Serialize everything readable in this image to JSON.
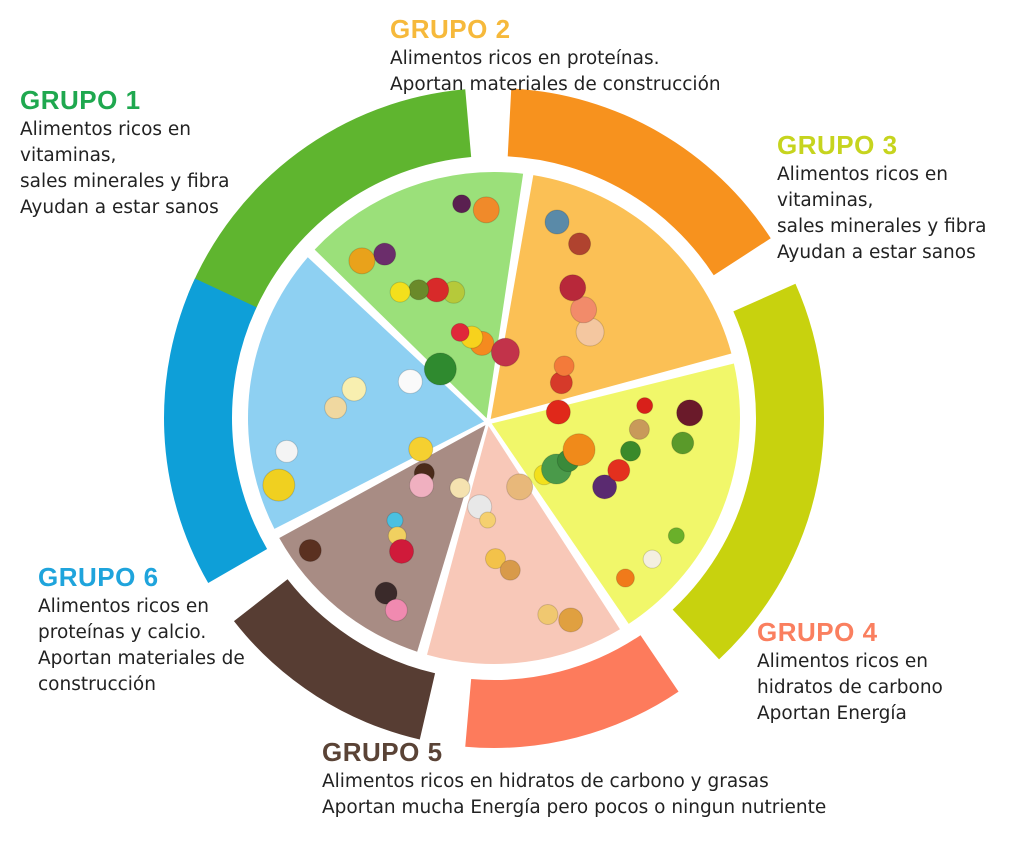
{
  "groups": [
    {
      "title": "GRUPO 1",
      "lines": [
        "Alimentos ricos en",
        "vitaminas,",
        "sales minerales y fibra",
        "Ayudan a estar sanos"
      ],
      "title_color": "#1fa84f",
      "band_color": "#5fb52f",
      "slice_color": "#9be07a",
      "food_icons": [
        "watermelon-icon",
        "pear-icon",
        "grapes-icon",
        "orange-icon",
        "apple-icon",
        "pineapple-icon",
        "banana-icon",
        "kiwi-icon",
        "papaya-icon",
        "strawberry-icon",
        "lemon-icon",
        "plum-icon"
      ]
    },
    {
      "title": "GRUPO 2",
      "lines": [
        "Alimentos ricos en proteínas.",
        "Aportan materiales de construcción"
      ],
      "title_color": "#f6b93b",
      "band_color": "#f7921e",
      "slice_color": "#fbc055",
      "food_icons": [
        "steak-icon",
        "chicken-icon",
        "bacon-icon",
        "lobster-icon",
        "salmon-icon",
        "fish-icon",
        "shrimp-icon",
        "t-bone-icon"
      ]
    },
    {
      "title": "GRUPO 3",
      "lines": [
        "Alimentos ricos en",
        "vitaminas,",
        "sales minerales y fibra",
        "Ayudan a estar sanos"
      ],
      "title_color": "#c6d41e",
      "band_color": "#c8d20e",
      "slice_color": "#f1f76a",
      "food_icons": [
        "pepper-icon",
        "eggplant-icon",
        "zucchini-icon",
        "lemon-icon",
        "tomato-icon",
        "beet-icon",
        "cabbage-icon",
        "cucumber-icon",
        "carrot-icon",
        "broccoli-icon",
        "potato-icon",
        "garlic-icon",
        "pumpkin-icon",
        "chili-icon",
        "peas-icon"
      ]
    },
    {
      "title": "GRUPO 4",
      "lines": [
        "Alimentos ricos en",
        "hidratos de carbono",
        "Aportan Energía"
      ],
      "title_color": "#fa7f5f",
      "band_color": "#fd7b5c",
      "slice_color": "#f8c8b8",
      "food_icons": [
        "bread-icon",
        "pasta-icon",
        "cracker-icon",
        "flour-icon",
        "baguette-icon",
        "croissant-icon",
        "spaghetti-icon"
      ]
    },
    {
      "title": "GRUPO 5",
      "lines": [
        "Alimentos ricos en hidratos de carbono y grasas",
        "Aportan mucha Energía pero  pocos o ningun nutriente"
      ],
      "title_color": "#5a4336",
      "band_color": "#573d33",
      "slice_color": "#a88c84",
      "food_icons": [
        "ice-cream-icon",
        "candy-icon",
        "cookie-icon",
        "chocolate-icon",
        "macaron-icon",
        "donut-icon",
        "cupcake-icon",
        "jam-icon",
        "cake-icon"
      ]
    },
    {
      "title": "GRUPO 6",
      "lines": [
        "Alimentos ricos en",
        "proteínas y calcio.",
        "Aportan materiales de",
        "construcción"
      ],
      "title_color": "#1fa4dc",
      "band_color": "#0e9fd8",
      "slice_color": "#8ed0f2",
      "food_icons": [
        "cheese-icon",
        "butter-icon",
        "yogurt-icon",
        "milk-icon",
        "egg-icon",
        "cheese-wheel-icon"
      ]
    }
  ]
}
